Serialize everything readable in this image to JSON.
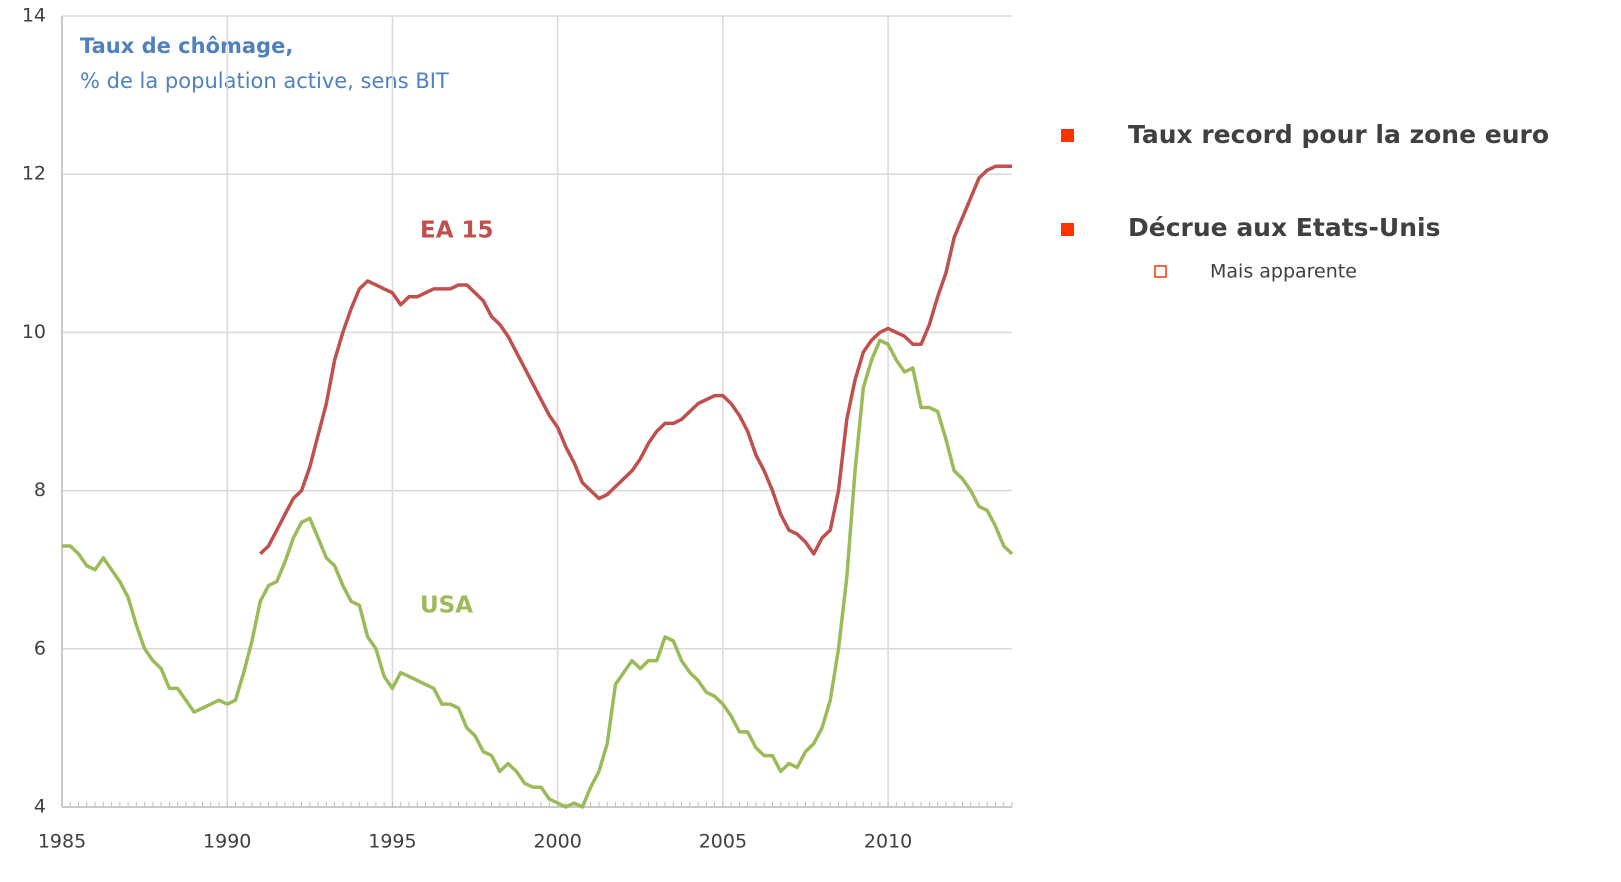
{
  "chart_data": {
    "type": "line",
    "title": "Taux de chômage,",
    "subtitle": "% de la population active, sens BIT",
    "x": [
      1985,
      1985.25,
      1985.5,
      1985.75,
      1986,
      1986.25,
      1986.5,
      1986.75,
      1987,
      1987.25,
      1987.5,
      1987.75,
      1988,
      1988.25,
      1988.5,
      1988.75,
      1989,
      1989.25,
      1989.5,
      1989.75,
      1990,
      1990.25,
      1990.5,
      1990.75,
      1991,
      1991.25,
      1991.5,
      1991.75,
      1992,
      1992.25,
      1992.5,
      1992.75,
      1993,
      1993.25,
      1993.5,
      1993.75,
      1994,
      1994.25,
      1994.5,
      1994.75,
      1995,
      1995.25,
      1995.5,
      1995.75,
      1996,
      1996.25,
      1996.5,
      1996.75,
      1997,
      1997.25,
      1997.5,
      1997.75,
      1998,
      1998.25,
      1998.5,
      1998.75,
      1999,
      1999.25,
      1999.5,
      1999.75,
      2000,
      2000.25,
      2000.5,
      2000.75,
      2001,
      2001.25,
      2001.5,
      2001.75,
      2002,
      2002.25,
      2002.5,
      2002.75,
      2003,
      2003.25,
      2003.5,
      2003.75,
      2004,
      2004.25,
      2004.5,
      2004.75,
      2005,
      2005.25,
      2005.5,
      2005.75,
      2006,
      2006.25,
      2006.5,
      2006.75,
      2007,
      2007.25,
      2007.5,
      2007.75,
      2008,
      2008.25,
      2008.5,
      2008.75,
      2009,
      2009.25,
      2009.5,
      2009.75,
      2010,
      2010.25,
      2010.5,
      2010.75,
      2011,
      2011.25,
      2011.5,
      2011.75,
      2012,
      2012.25,
      2012.5,
      2012.75,
      2013,
      2013.25,
      2013.5,
      2013.75
    ],
    "series": [
      {
        "name": "EA 15",
        "color": "#c0504d",
        "values": [
          null,
          null,
          null,
          null,
          null,
          null,
          null,
          null,
          null,
          null,
          null,
          null,
          null,
          null,
          null,
          null,
          null,
          null,
          null,
          null,
          null,
          null,
          null,
          null,
          7.2,
          7.3,
          7.5,
          7.7,
          7.9,
          8.0,
          8.3,
          8.7,
          9.1,
          9.65,
          10.0,
          10.3,
          10.55,
          10.65,
          10.6,
          10.55,
          10.5,
          10.35,
          10.45,
          10.45,
          10.5,
          10.55,
          10.55,
          10.55,
          10.6,
          10.6,
          10.5,
          10.4,
          10.2,
          10.1,
          9.95,
          9.75,
          9.55,
          9.35,
          9.15,
          8.95,
          8.8,
          8.55,
          8.35,
          8.1,
          8.0,
          7.9,
          7.95,
          8.05,
          8.15,
          8.25,
          8.4,
          8.6,
          8.75,
          8.85,
          8.85,
          8.9,
          9.0,
          9.1,
          9.15,
          9.2,
          9.2,
          9.1,
          8.95,
          8.75,
          8.45,
          8.25,
          8.0,
          7.7,
          7.5,
          7.45,
          7.35,
          7.2,
          7.4,
          7.5,
          8.0,
          8.9,
          9.4,
          9.75,
          9.9,
          10.0,
          10.05,
          10.0,
          9.95,
          9.85,
          9.85,
          10.1,
          10.45,
          10.75,
          11.2,
          11.45,
          11.7,
          11.95,
          12.05,
          12.1,
          12.1,
          12.1
        ]
      },
      {
        "name": "USA",
        "color": "#9bbb59",
        "values": [
          7.3,
          7.3,
          7.2,
          7.05,
          7.0,
          7.15,
          7.0,
          6.85,
          6.65,
          6.3,
          6.0,
          5.85,
          5.75,
          5.5,
          5.5,
          5.35,
          5.2,
          5.25,
          5.3,
          5.35,
          5.3,
          5.35,
          5.7,
          6.1,
          6.6,
          6.8,
          6.85,
          7.1,
          7.4,
          7.6,
          7.65,
          7.4,
          7.15,
          7.05,
          6.8,
          6.6,
          6.55,
          6.15,
          6.0,
          5.65,
          5.5,
          5.7,
          5.65,
          5.6,
          5.55,
          5.5,
          5.3,
          5.3,
          5.25,
          5.0,
          4.9,
          4.7,
          4.65,
          4.45,
          4.55,
          4.45,
          4.3,
          4.25,
          4.25,
          4.1,
          4.05,
          4.0,
          4.05,
          4.0,
          4.25,
          4.45,
          4.8,
          5.55,
          5.7,
          5.85,
          5.75,
          5.85,
          5.85,
          6.15,
          6.1,
          5.85,
          5.7,
          5.6,
          5.45,
          5.4,
          5.3,
          5.15,
          4.95,
          4.95,
          4.75,
          4.65,
          4.65,
          4.45,
          4.55,
          4.5,
          4.7,
          4.8,
          5.0,
          5.35,
          6.0,
          6.9,
          8.25,
          9.3,
          9.65,
          9.9,
          9.85,
          9.65,
          9.5,
          9.55,
          9.05,
          9.05,
          9.0,
          8.65,
          8.25,
          8.15,
          8.0,
          7.8,
          7.75,
          7.55,
          7.3,
          7.2
        ]
      }
    ],
    "xlim": [
      1985,
      2013.75
    ],
    "ylim": [
      4,
      14
    ],
    "xticks": [
      1985,
      1990,
      1995,
      2000,
      2005,
      2010
    ],
    "yticks": [
      4,
      6,
      8,
      10,
      12,
      14
    ],
    "grid": true
  },
  "bullets": [
    {
      "text": "Taux record pour la zone euro"
    },
    {
      "text": "Décrue aux Etats-Unis",
      "sub": [
        "Mais apparente"
      ]
    }
  ]
}
